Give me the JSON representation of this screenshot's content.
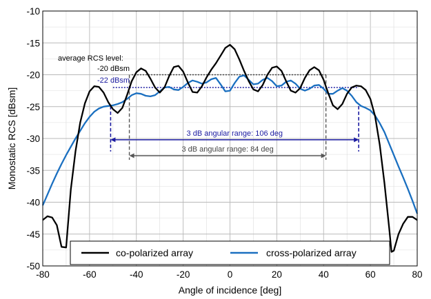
{
  "chart_data": {
    "type": "line",
    "xlabel": "Angle of incidence [deg]",
    "ylabel": "Monostatic RCS [dBsm]",
    "xlim": [
      -80,
      80
    ],
    "ylim": [
      -50,
      -10
    ],
    "xticks": [
      -80,
      -60,
      -40,
      -20,
      0,
      20,
      40,
      60,
      80
    ],
    "yticks": [
      -10,
      -15,
      -20,
      -25,
      -30,
      -35,
      -40,
      -45,
      -50
    ],
    "xtick_labels": [
      "-80",
      "-60",
      "-40",
      "-20",
      "0",
      "20",
      "40",
      "60",
      "80"
    ],
    "ytick_labels": [
      "-10",
      "-15",
      "-20",
      "-25",
      "-30",
      "-35",
      "-40",
      "-45",
      "-50"
    ],
    "grid": true,
    "legend_position": "bottom-center",
    "series": [
      {
        "name": "co-polarized array",
        "color": "#000000",
        "points": [
          [
            -80,
            -42.8
          ],
          [
            -78,
            -42.2
          ],
          [
            -76,
            -42.4
          ],
          [
            -74,
            -43.6
          ],
          [
            -72,
            -47.0
          ],
          [
            -70,
            -47.1
          ],
          [
            -68,
            -38.0
          ],
          [
            -66,
            -32.0
          ],
          [
            -64,
            -27.5
          ],
          [
            -62,
            -24.5
          ],
          [
            -60,
            -22.6
          ],
          [
            -58,
            -21.8
          ],
          [
            -56,
            -21.9
          ],
          [
            -54,
            -22.8
          ],
          [
            -52,
            -24.3
          ],
          [
            -50,
            -25.4
          ],
          [
            -48,
            -26.0
          ],
          [
            -46,
            -25.2
          ],
          [
            -44,
            -23.2
          ],
          [
            -42,
            -21.0
          ],
          [
            -40,
            -19.6
          ],
          [
            -38,
            -19.0
          ],
          [
            -36,
            -19.4
          ],
          [
            -34,
            -20.6
          ],
          [
            -32,
            -22.0
          ],
          [
            -30,
            -22.8
          ],
          [
            -28,
            -22.0
          ],
          [
            -26,
            -20.2
          ],
          [
            -24,
            -18.8
          ],
          [
            -22,
            -18.6
          ],
          [
            -20,
            -19.5
          ],
          [
            -18,
            -21.2
          ],
          [
            -16,
            -22.7
          ],
          [
            -14,
            -22.8
          ],
          [
            -12,
            -21.8
          ],
          [
            -10,
            -20.4
          ],
          [
            -8,
            -19.2
          ],
          [
            -6,
            -18.2
          ],
          [
            -4,
            -17.0
          ],
          [
            -2,
            -15.8
          ],
          [
            0,
            -15.3
          ],
          [
            2,
            -16.0
          ],
          [
            4,
            -17.6
          ],
          [
            6,
            -19.4
          ],
          [
            8,
            -21.0
          ],
          [
            10,
            -22.3
          ],
          [
            12,
            -22.6
          ],
          [
            14,
            -21.6
          ],
          [
            16,
            -20.0
          ],
          [
            18,
            -18.9
          ],
          [
            20,
            -18.7
          ],
          [
            22,
            -19.4
          ],
          [
            24,
            -21.0
          ],
          [
            26,
            -22.5
          ],
          [
            28,
            -22.8
          ],
          [
            30,
            -22.1
          ],
          [
            32,
            -20.5
          ],
          [
            34,
            -19.3
          ],
          [
            36,
            -18.8
          ],
          [
            38,
            -19.3
          ],
          [
            40,
            -20.8
          ],
          [
            42,
            -22.9
          ],
          [
            44,
            -24.8
          ],
          [
            46,
            -25.4
          ],
          [
            48,
            -24.6
          ],
          [
            50,
            -23.0
          ],
          [
            52,
            -22.0
          ],
          [
            54,
            -21.7
          ],
          [
            56,
            -21.8
          ],
          [
            58,
            -22.4
          ],
          [
            60,
            -23.8
          ],
          [
            62,
            -26.5
          ],
          [
            64,
            -31.0
          ],
          [
            66,
            -37.0
          ],
          [
            68,
            -44.0
          ],
          [
            69,
            -47.8
          ],
          [
            70,
            -47.6
          ],
          [
            72,
            -45.0
          ],
          [
            74,
            -43.4
          ],
          [
            76,
            -42.3
          ],
          [
            78,
            -42.3
          ],
          [
            80,
            -42.8
          ]
        ]
      },
      {
        "name": "cross-polarized array",
        "color": "#1a6fc0",
        "points": [
          [
            -80,
            -40.5
          ],
          [
            -78,
            -38.8
          ],
          [
            -76,
            -37.1
          ],
          [
            -74,
            -35.5
          ],
          [
            -72,
            -34.0
          ],
          [
            -70,
            -32.6
          ],
          [
            -68,
            -31.3
          ],
          [
            -66,
            -30.0
          ],
          [
            -64,
            -28.8
          ],
          [
            -62,
            -27.6
          ],
          [
            -60,
            -26.6
          ],
          [
            -58,
            -25.8
          ],
          [
            -56,
            -25.3
          ],
          [
            -54,
            -25.0
          ],
          [
            -52,
            -24.9
          ],
          [
            -50,
            -24.8
          ],
          [
            -48,
            -24.6
          ],
          [
            -46,
            -24.3
          ],
          [
            -44,
            -23.8
          ],
          [
            -42,
            -23.2
          ],
          [
            -40,
            -22.9
          ],
          [
            -38,
            -23.0
          ],
          [
            -36,
            -23.3
          ],
          [
            -34,
            -23.4
          ],
          [
            -32,
            -23.2
          ],
          [
            -30,
            -22.6
          ],
          [
            -28,
            -22.0
          ],
          [
            -26,
            -21.9
          ],
          [
            -24,
            -22.3
          ],
          [
            -22,
            -22.4
          ],
          [
            -20,
            -21.9
          ],
          [
            -18,
            -21.3
          ],
          [
            -16,
            -20.9
          ],
          [
            -14,
            -21.1
          ],
          [
            -12,
            -21.4
          ],
          [
            -10,
            -21.2
          ],
          [
            -8,
            -20.7
          ],
          [
            -6,
            -20.5
          ],
          [
            -4,
            -21.5
          ],
          [
            -2,
            -22.6
          ],
          [
            0,
            -22.5
          ],
          [
            2,
            -21.3
          ],
          [
            4,
            -20.3
          ],
          [
            6,
            -20.1
          ],
          [
            8,
            -20.8
          ],
          [
            10,
            -21.5
          ],
          [
            12,
            -21.4
          ],
          [
            14,
            -20.8
          ],
          [
            16,
            -20.5
          ],
          [
            18,
            -21.0
          ],
          [
            20,
            -21.8
          ],
          [
            22,
            -21.7
          ],
          [
            24,
            -21.1
          ],
          [
            26,
            -20.9
          ],
          [
            28,
            -21.4
          ],
          [
            30,
            -22.2
          ],
          [
            32,
            -22.5
          ],
          [
            34,
            -22.2
          ],
          [
            36,
            -21.7
          ],
          [
            38,
            -21.6
          ],
          [
            40,
            -22.2
          ],
          [
            42,
            -23.0
          ],
          [
            44,
            -23.0
          ],
          [
            46,
            -22.5
          ],
          [
            48,
            -22.1
          ],
          [
            50,
            -22.5
          ],
          [
            52,
            -23.3
          ],
          [
            54,
            -24.3
          ],
          [
            56,
            -24.9
          ],
          [
            58,
            -25.2
          ],
          [
            60,
            -25.6
          ],
          [
            62,
            -26.4
          ],
          [
            64,
            -27.6
          ],
          [
            66,
            -29.0
          ],
          [
            68,
            -30.8
          ],
          [
            70,
            -32.6
          ],
          [
            72,
            -34.4
          ],
          [
            74,
            -36.1
          ],
          [
            76,
            -37.9
          ],
          [
            78,
            -39.8
          ],
          [
            80,
            -41.8
          ]
        ]
      }
    ],
    "annotations": {
      "avg_title": "average RCS  level:",
      "avg_co_label": "-20 dBsm",
      "avg_co_value": -20,
      "avg_co_x_range": [
        -42,
        41
      ],
      "avg_cross_label": "-22 dBsm",
      "avg_cross_value": -22,
      "avg_cross_x_range": [
        -50,
        55
      ],
      "range_cross_label": "3 dB angular range: 106 deg",
      "range_cross_x": [
        -51,
        55
      ],
      "range_cross_y": -30.2,
      "range_cross_color": "#1a1aa0",
      "range_co_label": "3 dB angular range: 84 deg",
      "range_co_x": [
        -43,
        41
      ],
      "range_co_y": -32.7,
      "range_co_color": "#555555"
    },
    "legend": {
      "items": [
        "co-polarized array",
        "cross-polarized array"
      ]
    }
  }
}
